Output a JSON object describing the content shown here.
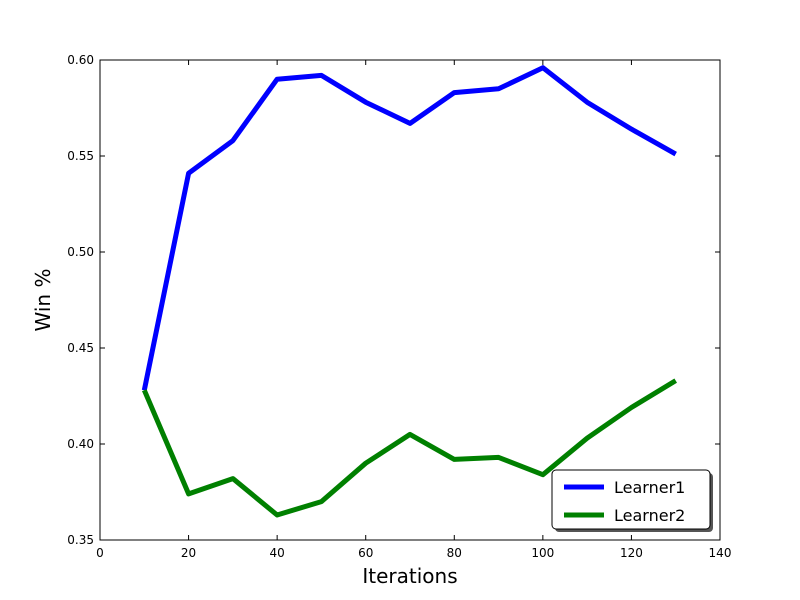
{
  "chart_data": {
    "type": "line",
    "title": "",
    "xlabel": "Iterations",
    "ylabel": "Win %",
    "xlim": [
      0,
      140
    ],
    "ylim": [
      0.35,
      0.6
    ],
    "xticks": [
      "0",
      "20",
      "40",
      "60",
      "80",
      "100",
      "120",
      "140"
    ],
    "yticks": [
      "0.35",
      "0.40",
      "0.45",
      "0.50",
      "0.55",
      "0.60"
    ],
    "grid": false,
    "legend_position": "bottom-right",
    "x": [
      10,
      20,
      30,
      40,
      50,
      60,
      70,
      80,
      90,
      100,
      110,
      120,
      130
    ],
    "series": [
      {
        "name": "Learner1",
        "color": "#0000ff",
        "values": [
          0.428,
          0.541,
          0.558,
          0.59,
          0.592,
          0.578,
          0.567,
          0.583,
          0.585,
          0.596,
          0.578,
          0.564,
          0.551
        ]
      },
      {
        "name": "Learner2",
        "color": "#008000",
        "values": [
          0.428,
          0.374,
          0.382,
          0.363,
          0.37,
          0.39,
          0.405,
          0.392,
          0.393,
          0.384,
          0.403,
          0.419,
          0.433
        ]
      }
    ]
  }
}
